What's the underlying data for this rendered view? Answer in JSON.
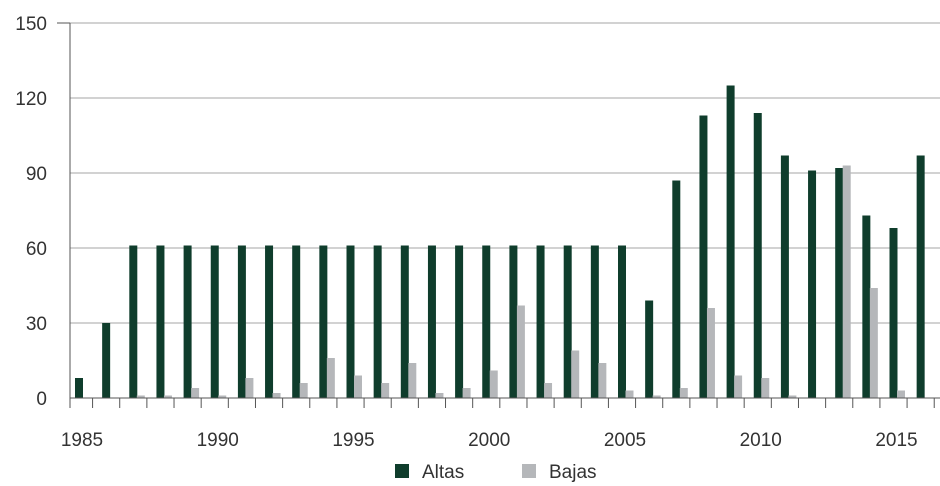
{
  "chart_data": {
    "type": "bar",
    "title": "",
    "xlabel": "",
    "ylabel": "",
    "ylim": [
      0,
      150
    ],
    "yticks": [
      0,
      30,
      60,
      90,
      120,
      150
    ],
    "xtick_labels": [
      "1985",
      "1990",
      "1995",
      "2000",
      "2005",
      "2010",
      "2015"
    ],
    "grid": "horizontal",
    "legend_position": "bottom",
    "categories": [
      "1985",
      "1986",
      "1987",
      "1988",
      "1989",
      "1990",
      "1991",
      "1992",
      "1993",
      "1994",
      "1995",
      "1996",
      "1997",
      "1998",
      "1999",
      "2000",
      "2001",
      "2002",
      "2003",
      "2004",
      "2005",
      "2006",
      "2007",
      "2008",
      "2009",
      "2010",
      "2011",
      "2012",
      "2013",
      "2014",
      "2015",
      "2016"
    ],
    "series": [
      {
        "name": "Altas",
        "color": "#0f3d2c",
        "values": [
          8,
          30,
          61,
          61,
          61,
          61,
          61,
          61,
          61,
          61,
          61,
          61,
          61,
          61,
          61,
          61,
          61,
          61,
          61,
          61,
          61,
          39,
          87,
          113,
          125,
          114,
          97,
          91,
          92,
          73,
          68,
          97
        ]
      },
      {
        "name": "Bajas",
        "color": "#b5b7ba",
        "values": [
          0,
          0,
          1,
          1,
          4,
          1,
          8,
          2,
          6,
          16,
          9,
          6,
          14,
          2,
          4,
          11,
          37,
          6,
          19,
          14,
          3,
          1,
          4,
          36,
          9,
          8,
          1,
          0,
          93,
          44,
          3,
          0
        ]
      }
    ]
  }
}
